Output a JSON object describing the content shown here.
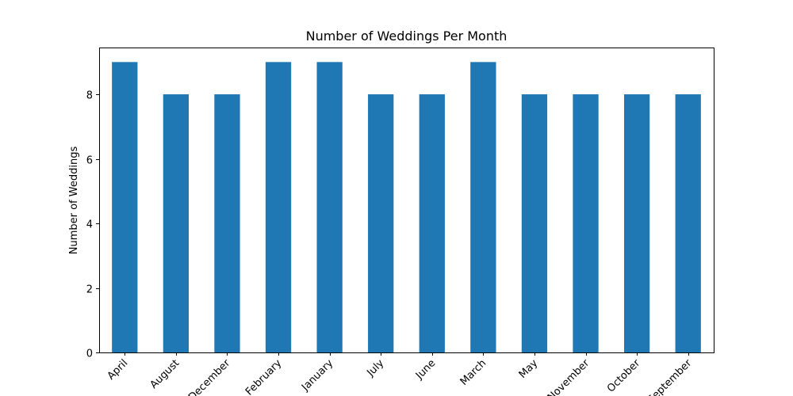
{
  "chart_data": {
    "type": "bar",
    "title": "Number of Weddings Per Month",
    "xlabel": "",
    "ylabel": "Number of Weddings",
    "categories": [
      "April",
      "August",
      "December",
      "February",
      "January",
      "July",
      "June",
      "March",
      "May",
      "November",
      "October",
      "September"
    ],
    "values": [
      9,
      8,
      8,
      9,
      9,
      8,
      8,
      9,
      8,
      8,
      8,
      8
    ],
    "ylim": [
      0,
      9.45
    ],
    "yticks": [
      0,
      2,
      4,
      6,
      8
    ],
    "bar_color": "#1f77b4",
    "grid": false,
    "legend": "none"
  }
}
